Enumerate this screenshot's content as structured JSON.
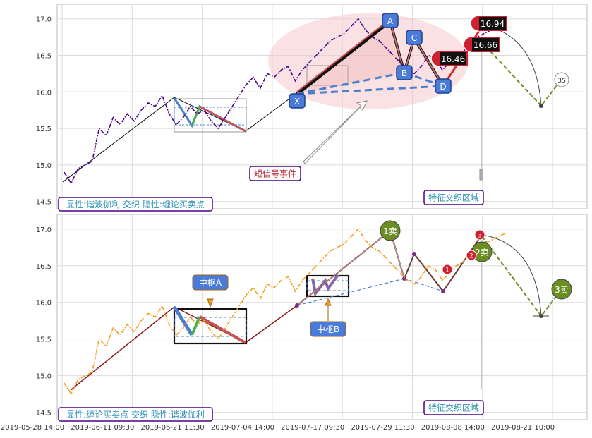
{
  "chart_data": [
    {
      "type": "line",
      "panel": "top",
      "ylim": [
        14.4,
        17.2
      ],
      "y_ticks": [
        "17.0",
        "16.5",
        "16.0",
        "15.5",
        "15.0",
        "14.5"
      ],
      "grid": true,
      "series": [
        {
          "color": "#4b0082",
          "style": "dash-dot",
          "x": [
            0,
            3,
            6,
            9,
            12,
            15,
            18,
            21,
            24,
            27,
            30,
            33,
            36,
            39,
            42,
            45,
            48,
            51,
            54,
            57,
            60,
            63,
            66,
            69,
            72,
            75,
            78,
            81,
            84,
            87,
            90,
            93,
            96,
            99,
            102,
            105,
            108,
            111,
            114,
            117,
            120,
            123,
            126,
            129,
            132,
            135,
            138,
            141,
            144,
            147,
            150,
            153,
            156,
            159,
            162,
            165,
            168,
            171,
            174,
            177,
            180,
            183,
            186,
            189
          ],
          "y": [
            14.9,
            14.75,
            14.95,
            15.0,
            15.05,
            15.5,
            15.4,
            15.65,
            15.55,
            15.7,
            15.6,
            15.75,
            15.85,
            15.8,
            15.95,
            15.7,
            15.55,
            15.65,
            15.8,
            15.7,
            15.75,
            15.6,
            15.5,
            15.65,
            15.8,
            15.95,
            16.1,
            16.2,
            16.05,
            16.25,
            16.2,
            16.3,
            16.35,
            16.15,
            16.3,
            16.4,
            16.5,
            16.6,
            16.7,
            16.75,
            16.8,
            16.9,
            17.0,
            16.85,
            16.75,
            16.7,
            16.6,
            16.5,
            16.4,
            16.3,
            16.25,
            16.35,
            16.5,
            16.45,
            16.3,
            16.4,
            16.5,
            16.55,
            16.7,
            16.75,
            16.8,
            16.85,
            16.9,
            16.94
          ]
        }
      ],
      "pattern_points": [
        {
          "label": "X",
          "x": 100,
          "y": 16.0
        },
        {
          "label": "A",
          "x": 137,
          "y": 16.95
        },
        {
          "label": "B",
          "x": 142,
          "y": 16.35
        },
        {
          "label": "C",
          "x": 145,
          "y": 16.6
        },
        {
          "label": "D",
          "x": 156,
          "y": 16.15
        }
      ],
      "value_badges": [
        {
          "label": "16.94",
          "x": 171,
          "y": 16.94
        },
        {
          "label": "16.66",
          "x": 170,
          "y": 16.66
        },
        {
          "label": "16.46",
          "x": 157,
          "y": 16.46
        }
      ],
      "projection_label": "3S",
      "annotations": {
        "short_signal": "短信号事件",
        "feature_zone": "特征交织区域",
        "corner_label": "显性:谐波伽利 交织 隐性:缠论买卖点"
      }
    },
    {
      "type": "line",
      "panel": "bottom",
      "ylim": [
        14.4,
        17.2
      ],
      "y_ticks": [
        "17.0",
        "16.5",
        "16.0",
        "15.5",
        "15.0",
        "14.5"
      ],
      "grid": true,
      "x_tick_labels": [
        "2019-05-28 14:00",
        "2019-06-11 09:30",
        "2019-06-21 11:30",
        "2019-07-04 14:00",
        "2019-07-17 09:30",
        "2019-07-29 11:30",
        "2019-08-08 14:00",
        "2019-08-21 10:00"
      ],
      "series": [
        {
          "color": "#f0a020",
          "style": "dash-dot",
          "x": [
            0,
            3,
            6,
            9,
            12,
            15,
            18,
            21,
            24,
            27,
            30,
            33,
            36,
            39,
            42,
            45,
            48,
            51,
            54,
            57,
            60,
            63,
            66,
            69,
            72,
            75,
            78,
            81,
            84,
            87,
            90,
            93,
            96,
            99,
            102,
            105,
            108,
            111,
            114,
            117,
            120,
            123,
            126,
            129,
            132,
            135,
            138,
            141,
            144,
            147,
            150,
            153,
            156,
            159,
            162,
            165,
            168,
            171,
            174,
            177,
            180,
            183,
            186,
            189
          ],
          "y": [
            14.9,
            14.75,
            14.95,
            15.0,
            15.05,
            15.5,
            15.4,
            15.65,
            15.55,
            15.7,
            15.6,
            15.75,
            15.85,
            15.8,
            15.95,
            15.7,
            15.55,
            15.65,
            15.8,
            15.7,
            15.75,
            15.6,
            15.5,
            15.65,
            15.8,
            15.95,
            16.1,
            16.2,
            16.05,
            16.25,
            16.2,
            16.3,
            16.35,
            16.15,
            16.3,
            16.4,
            16.5,
            16.6,
            16.7,
            16.75,
            16.8,
            16.9,
            17.0,
            16.85,
            16.75,
            16.7,
            16.6,
            16.5,
            16.4,
            16.3,
            16.25,
            16.35,
            16.5,
            16.45,
            16.3,
            16.4,
            16.5,
            16.55,
            16.7,
            16.75,
            16.8,
            16.85,
            16.9,
            16.94
          ]
        }
      ],
      "signals": [
        {
          "label": "1卖",
          "x": 137,
          "y": 17.0
        },
        {
          "label": "2卖",
          "x": 172,
          "y": 16.7
        },
        {
          "label": "3卖",
          "x": 211,
          "y": 16.2
        }
      ],
      "small_markers": [
        "1",
        "2",
        "3"
      ],
      "annotations": {
        "zhongshu_a": "中枢A",
        "zhongshu_b": "中枢B",
        "feature_zone": "特征交织区域",
        "corner_label": "显性:缠论买卖点 交织 隐性:谐波伽利"
      }
    }
  ]
}
